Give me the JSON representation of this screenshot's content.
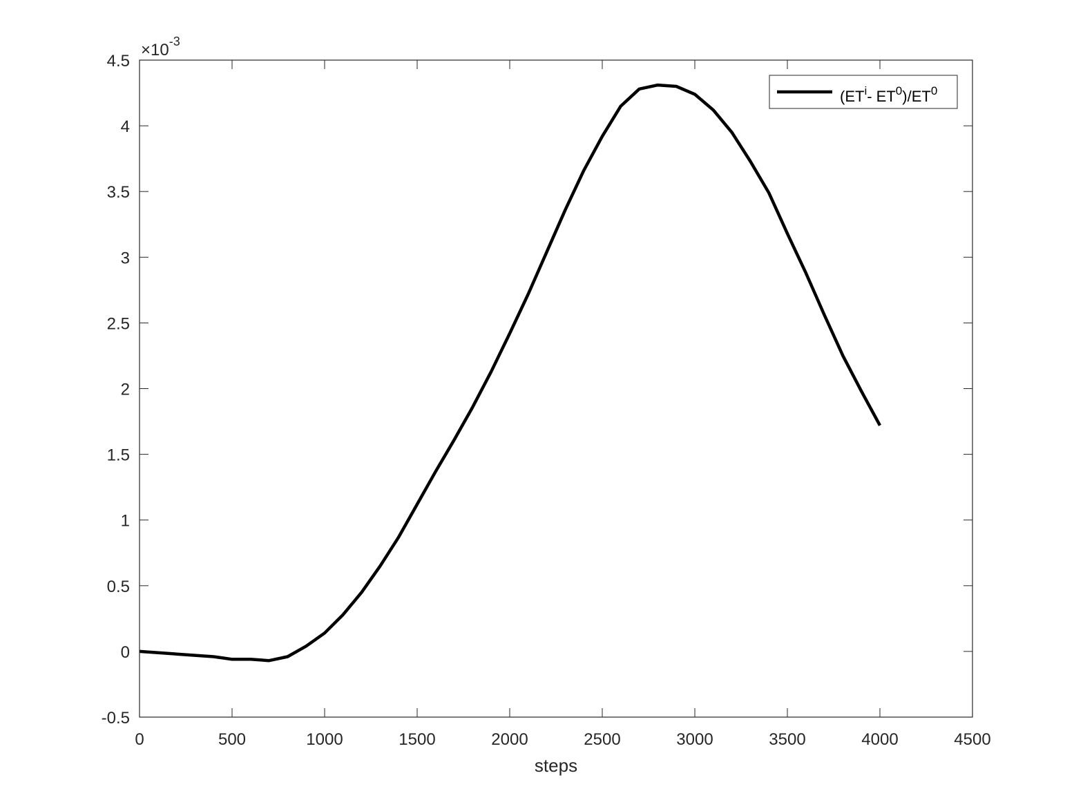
{
  "chart_data": {
    "type": "line",
    "title": "",
    "xlabel": "steps",
    "ylabel": "",
    "xlim": [
      0,
      4500
    ],
    "ylim": [
      -0.5,
      4.5
    ],
    "y_multiplier_label": "×10",
    "y_multiplier_exponent": "-3",
    "x_ticks": [
      0,
      500,
      1000,
      1500,
      2000,
      2500,
      3000,
      3500,
      4000,
      4500
    ],
    "x_tick_labels": [
      "0",
      "500",
      "1000",
      "1500",
      "2000",
      "2500",
      "3000",
      "3500",
      "4000",
      "4500"
    ],
    "y_ticks": [
      -0.5,
      0,
      0.5,
      1,
      1.5,
      2,
      2.5,
      3,
      3.5,
      4,
      4.5
    ],
    "y_tick_labels": [
      "-0.5",
      "0",
      "0.5",
      "1",
      "1.5",
      "2",
      "2.5",
      "3",
      "3.5",
      "4",
      "4.5"
    ],
    "grid": false,
    "legend": {
      "position": "top-right",
      "entries": [
        {
          "series_index": 0,
          "label_parts": [
            {
              "text": "(ET",
              "sup": false
            },
            {
              "text": "i",
              "sup": true
            },
            {
              "text": "- ET",
              "sup": false
            },
            {
              "text": "0",
              "sup": true
            },
            {
              "text": ")/ET",
              "sup": false
            },
            {
              "text": "0",
              "sup": true
            }
          ]
        }
      ]
    },
    "series": [
      {
        "name": "(ETi- ET0)/ET0",
        "color": "#000000",
        "x": [
          0,
          100,
          200,
          300,
          400,
          450,
          500,
          600,
          700,
          800,
          900,
          1000,
          1100,
          1200,
          1300,
          1400,
          1500,
          1600,
          1700,
          1800,
          1900,
          2000,
          2100,
          2200,
          2300,
          2400,
          2500,
          2600,
          2700,
          2800,
          2900,
          3000,
          3100,
          3200,
          3300,
          3400,
          3500,
          3600,
          3700,
          3800,
          3900,
          4000
        ],
        "values": [
          0.0,
          -0.01,
          -0.02,
          -0.03,
          -0.04,
          -0.05,
          -0.06,
          -0.06,
          -0.07,
          -0.04,
          0.04,
          0.14,
          0.28,
          0.45,
          0.65,
          0.87,
          1.12,
          1.37,
          1.61,
          1.86,
          2.13,
          2.42,
          2.72,
          3.04,
          3.36,
          3.66,
          3.92,
          4.15,
          4.28,
          4.31,
          4.3,
          4.24,
          4.12,
          3.95,
          3.73,
          3.49,
          3.18,
          2.88,
          2.56,
          2.25,
          1.98,
          1.72
        ]
      }
    ]
  },
  "colors": {
    "axes": "#262626",
    "line": "#000000",
    "background": "#ffffff"
  }
}
